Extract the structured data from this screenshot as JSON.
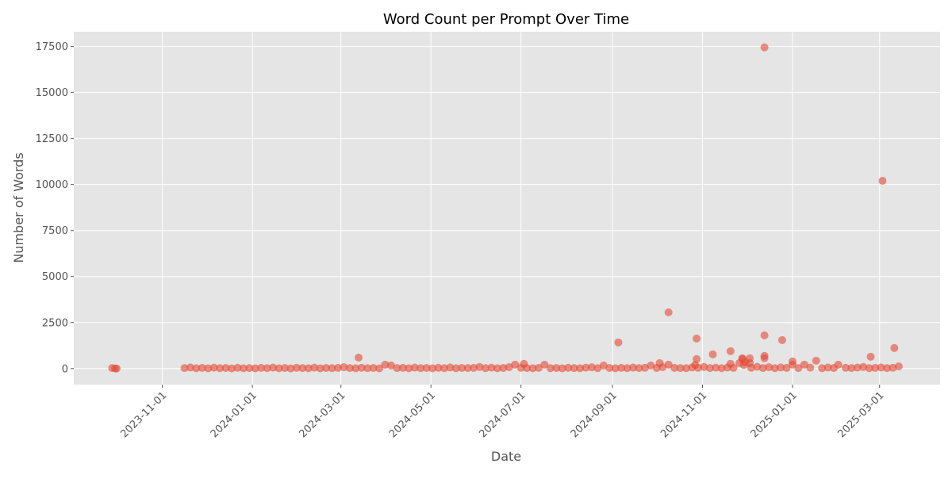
{
  "chart_data": {
    "type": "scatter",
    "title": "Word Count per Prompt Over Time",
    "xlabel": "Date",
    "ylabel": "Number of Words",
    "xlim": [
      "2023-09-02",
      "2025-04-11"
    ],
    "ylim": [
      -870,
      18300
    ],
    "x_ticks": [
      "2023-11-01",
      "2024-01-01",
      "2024-03-01",
      "2024-05-01",
      "2024-07-01",
      "2024-09-01",
      "2024-11-01",
      "2025-01-01",
      "2025-03-01"
    ],
    "y_ticks": [
      0,
      2500,
      5000,
      7500,
      10000,
      12500,
      15000,
      17500
    ],
    "grid": true,
    "background": "#e5e5e5",
    "marker_color": "#e24a33",
    "marker_alpha": 0.6,
    "points": [
      [
        "2023-09-28",
        30
      ],
      [
        "2023-09-30",
        10
      ],
      [
        "2023-10-01",
        5
      ],
      [
        "2023-11-16",
        30
      ],
      [
        "2023-11-20",
        60
      ],
      [
        "2023-11-24",
        20
      ],
      [
        "2023-11-28",
        40
      ],
      [
        "2023-12-02",
        15
      ],
      [
        "2023-12-06",
        50
      ],
      [
        "2023-12-10",
        25
      ],
      [
        "2023-12-14",
        35
      ],
      [
        "2023-12-18",
        10
      ],
      [
        "2023-12-22",
        45
      ],
      [
        "2023-12-26",
        20
      ],
      [
        "2023-12-30",
        30
      ],
      [
        "2024-01-03",
        15
      ],
      [
        "2024-01-07",
        40
      ],
      [
        "2024-01-11",
        25
      ],
      [
        "2024-01-15",
        55
      ],
      [
        "2024-01-19",
        20
      ],
      [
        "2024-01-23",
        35
      ],
      [
        "2024-01-27",
        10
      ],
      [
        "2024-01-31",
        45
      ],
      [
        "2024-02-04",
        30
      ],
      [
        "2024-02-08",
        20
      ],
      [
        "2024-02-12",
        50
      ],
      [
        "2024-02-16",
        15
      ],
      [
        "2024-02-20",
        35
      ],
      [
        "2024-02-24",
        25
      ],
      [
        "2024-02-28",
        40
      ],
      [
        "2024-03-03",
        80
      ],
      [
        "2024-03-07",
        30
      ],
      [
        "2024-03-11",
        20
      ],
      [
        "2024-03-13",
        600
      ],
      [
        "2024-03-15",
        45
      ],
      [
        "2024-03-19",
        25
      ],
      [
        "2024-03-23",
        35
      ],
      [
        "2024-03-27",
        15
      ],
      [
        "2024-03-31",
        215
      ],
      [
        "2024-04-04",
        170
      ],
      [
        "2024-04-08",
        30
      ],
      [
        "2024-04-12",
        40
      ],
      [
        "2024-04-16",
        20
      ],
      [
        "2024-04-20",
        55
      ],
      [
        "2024-04-24",
        25
      ],
      [
        "2024-04-28",
        35
      ],
      [
        "2024-05-02",
        15
      ],
      [
        "2024-05-06",
        45
      ],
      [
        "2024-05-10",
        25
      ],
      [
        "2024-05-14",
        60
      ],
      [
        "2024-05-18",
        20
      ],
      [
        "2024-05-22",
        35
      ],
      [
        "2024-05-26",
        30
      ],
      [
        "2024-05-30",
        40
      ],
      [
        "2024-06-03",
        90
      ],
      [
        "2024-06-07",
        25
      ],
      [
        "2024-06-11",
        50
      ],
      [
        "2024-06-15",
        20
      ],
      [
        "2024-06-19",
        35
      ],
      [
        "2024-06-23",
        80
      ],
      [
        "2024-06-27",
        215
      ],
      [
        "2024-07-01",
        45
      ],
      [
        "2024-07-03",
        260
      ],
      [
        "2024-07-05",
        30
      ],
      [
        "2024-07-09",
        20
      ],
      [
        "2024-07-13",
        40
      ],
      [
        "2024-07-17",
        215
      ],
      [
        "2024-07-21",
        25
      ],
      [
        "2024-07-25",
        35
      ],
      [
        "2024-07-29",
        15
      ],
      [
        "2024-08-02",
        45
      ],
      [
        "2024-08-06",
        30
      ],
      [
        "2024-08-10",
        20
      ],
      [
        "2024-08-14",
        50
      ],
      [
        "2024-08-18",
        70
      ],
      [
        "2024-08-22",
        25
      ],
      [
        "2024-08-26",
        170
      ],
      [
        "2024-08-30",
        35
      ],
      [
        "2024-09-03",
        20
      ],
      [
        "2024-09-05",
        1420
      ],
      [
        "2024-09-07",
        40
      ],
      [
        "2024-09-11",
        25
      ],
      [
        "2024-09-15",
        55
      ],
      [
        "2024-09-19",
        30
      ],
      [
        "2024-09-23",
        45
      ],
      [
        "2024-09-27",
        170
      ],
      [
        "2024-10-01",
        35
      ],
      [
        "2024-10-03",
        300
      ],
      [
        "2024-10-05",
        80
      ],
      [
        "2024-10-09",
        3055
      ],
      [
        "2024-10-09",
        215
      ],
      [
        "2024-10-13",
        40
      ],
      [
        "2024-10-17",
        30
      ],
      [
        "2024-10-21",
        25
      ],
      [
        "2024-10-25",
        60
      ],
      [
        "2024-10-28",
        1635
      ],
      [
        "2024-10-28",
        520
      ],
      [
        "2024-10-27",
        200
      ],
      [
        "2024-10-29",
        45
      ],
      [
        "2024-11-02",
        90
      ],
      [
        "2024-11-06",
        30
      ],
      [
        "2024-11-08",
        775
      ],
      [
        "2024-11-10",
        50
      ],
      [
        "2024-11-14",
        25
      ],
      [
        "2024-11-18",
        60
      ],
      [
        "2024-11-20",
        947
      ],
      [
        "2024-11-20",
        260
      ],
      [
        "2024-11-22",
        40
      ],
      [
        "2024-11-26",
        300
      ],
      [
        "2024-11-28",
        560
      ],
      [
        "2024-11-28",
        520
      ],
      [
        "2024-11-29",
        200
      ],
      [
        "2024-11-30",
        350
      ],
      [
        "2024-12-03",
        560
      ],
      [
        "2024-12-03",
        300
      ],
      [
        "2024-12-04",
        45
      ],
      [
        "2024-12-08",
        100
      ],
      [
        "2024-12-12",
        30
      ],
      [
        "2024-12-13",
        17450
      ],
      [
        "2024-12-13",
        1807
      ],
      [
        "2024-12-13",
        690
      ],
      [
        "2024-12-13",
        560
      ],
      [
        "2024-12-16",
        80
      ],
      [
        "2024-12-20",
        25
      ],
      [
        "2024-12-24",
        60
      ],
      [
        "2024-12-25",
        1550
      ],
      [
        "2024-12-28",
        40
      ],
      [
        "2025-01-01",
        390
      ],
      [
        "2025-01-01",
        215
      ],
      [
        "2025-01-05",
        30
      ],
      [
        "2025-01-09",
        215
      ],
      [
        "2025-01-13",
        50
      ],
      [
        "2025-01-17",
        430
      ],
      [
        "2025-01-21",
        25
      ],
      [
        "2025-01-25",
        60
      ],
      [
        "2025-01-29",
        35
      ],
      [
        "2025-02-01",
        215
      ],
      [
        "2025-02-06",
        45
      ],
      [
        "2025-02-10",
        30
      ],
      [
        "2025-02-14",
        55
      ],
      [
        "2025-02-18",
        90
      ],
      [
        "2025-02-22",
        25
      ],
      [
        "2025-02-23",
        645
      ],
      [
        "2025-02-26",
        40
      ],
      [
        "2025-03-02",
        60
      ],
      [
        "2025-03-03",
        10200
      ],
      [
        "2025-03-06",
        30
      ],
      [
        "2025-03-10",
        45
      ],
      [
        "2025-03-11",
        1120
      ],
      [
        "2025-03-14",
        120
      ]
    ]
  }
}
